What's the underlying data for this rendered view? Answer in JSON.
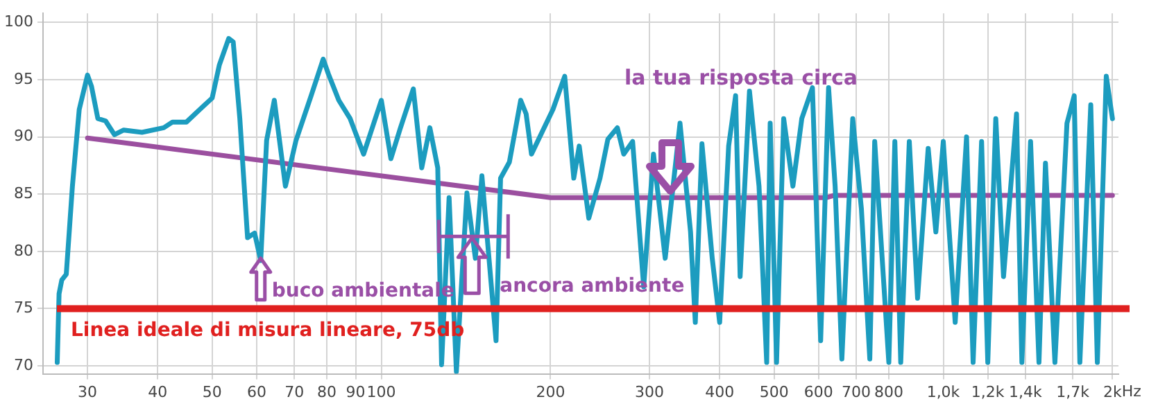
{
  "chart_data": {
    "type": "line",
    "log": "x",
    "xlim": [
      25,
      2050
    ],
    "ylim": [
      69.3,
      100.8
    ],
    "xticks": [
      30,
      40,
      50,
      60,
      70,
      80,
      90,
      100,
      200,
      300,
      400,
      500,
      600,
      700,
      800,
      {
        "value": 1000,
        "label": "1,0k"
      },
      {
        "value": 1200,
        "label": "1,2k"
      },
      {
        "value": 1400,
        "label": "1,4k"
      },
      {
        "value": 1700,
        "label": "1,7k"
      },
      {
        "value": 2000,
        "label": "2k"
      }
    ],
    "xlabel": "Hz",
    "yticks": [
      70,
      75,
      80,
      85,
      90,
      95,
      100
    ],
    "grid": true,
    "legend": false,
    "marker": "none",
    "line_style": "solid",
    "series": [
      {
        "color": "#1c9cbf",
        "x": [
          26.5,
          26.7,
          27,
          27.5,
          28.2,
          29,
          30,
          30.5,
          31.3,
          32.3,
          33.5,
          34.8,
          37.5,
          41,
          42.5,
          45,
          48,
          50,
          51.5,
          53.5,
          54.5,
          56,
          57.8,
          59.5,
          61,
          62.5,
          64.5,
          67.5,
          70.5,
          75,
          78.8,
          80.5,
          84,
          88,
          93,
          100,
          104,
          108,
          114,
          118,
          122,
          126,
          128,
          132,
          136,
          142,
          147,
          151,
          160,
          163,
          169,
          177,
          181,
          185,
          202,
          212,
          220,
          225,
          234,
          245,
          253,
          263,
          270,
          280,
          293,
          305,
          320,
          340,
          355,
          362,
          372,
          388,
          400,
          415,
          427,
          435,
          452,
          470,
          485,
          492,
          505,
          520,
          540,
          560,
          585,
          605,
          625,
          642,
          660,
          690,
          715,
          740,
          755,
          800,
          820,
          840,
          870,
          900,
          940,
          970,
          1000,
          1050,
          1100,
          1130,
          1170,
          1200,
          1240,
          1280,
          1350,
          1380,
          1430,
          1480,
          1520,
          1580,
          1660,
          1710,
          1750,
          1830,
          1880,
          1950,
          2000
        ],
        "values": [
          70.3,
          76.3,
          77.5,
          78,
          85.7,
          92.4,
          95.4,
          94.4,
          91.6,
          91.4,
          90.2,
          90.6,
          90.4,
          90.8,
          91.3,
          91.3,
          92.6,
          93.4,
          96.3,
          98.6,
          98.3,
          91.6,
          81.2,
          81.6,
          79.2,
          89.7,
          93.2,
          85.7,
          89.7,
          93.6,
          96.8,
          95.5,
          93.2,
          91.6,
          88.5,
          93.2,
          88.1,
          90.7,
          94.2,
          87.3,
          90.8,
          87.3,
          70.1,
          84.7,
          69.5,
          85.1,
          79.4,
          86.6,
          72.2,
          86.4,
          87.8,
          93.2,
          92,
          88.5,
          92.4,
          95.3,
          86.4,
          89.2,
          82.9,
          86.4,
          89.8,
          90.8,
          88.5,
          89.6,
          76.9,
          88.5,
          79.4,
          91.2,
          81.7,
          73.8,
          89.4,
          79.4,
          73.8,
          89.2,
          93.6,
          77.8,
          94,
          85.7,
          70.3,
          91.2,
          70.3,
          91.6,
          85.7,
          91.6,
          94.3,
          72.2,
          94.3,
          85.7,
          70.6,
          91.6,
          83.7,
          70.6,
          89.6,
          70.3,
          89.6,
          70.3,
          89.6,
          75.9,
          89,
          81.7,
          89.6,
          73.8,
          90,
          70.3,
          89.6,
          70.3,
          91.6,
          77.8,
          92,
          70.3,
          89.6,
          70.3,
          87.7,
          70.3,
          91.2,
          93.6,
          70.3,
          92.8,
          70.3,
          95.3,
          91.6
        ]
      },
      {
        "color": "#9b4f9f",
        "x": [
          30,
          200,
          620,
          640,
          2000
        ],
        "values": [
          89.9,
          84.7,
          84.7,
          84.9,
          84.9
        ]
      }
    ],
    "ref_lines": [
      {
        "axis": "y",
        "value": 75,
        "label": "Linea ideale di misura lineare, 75db",
        "color": "#e0201f"
      }
    ],
    "annotations": [
      {
        "text": "buco ambientale",
        "x": 61,
        "y": 79.4
      },
      {
        "text": "ancora ambiente",
        "x": 145,
        "y": 81.3
      },
      "la tua risposta circa"
    ]
  }
}
